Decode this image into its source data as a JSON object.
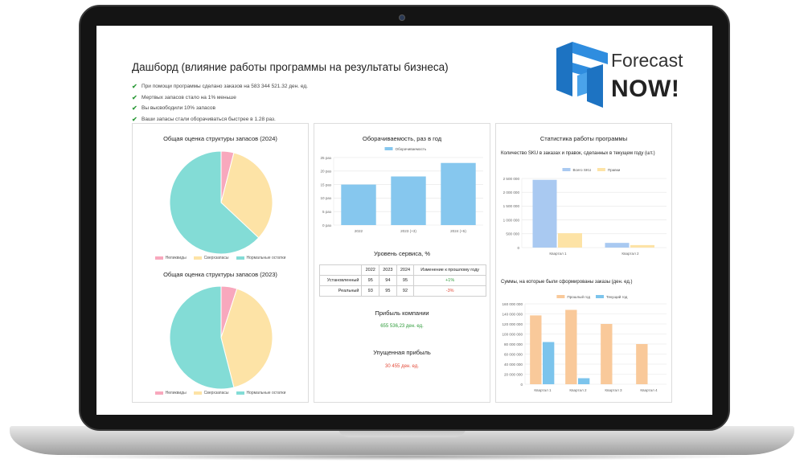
{
  "header": {
    "title": "Дашборд (влияние работы программы на результаты бизнеса)",
    "bullets": [
      "При помощи программы сделано заказов на 583 344 521.32 ден. ед.",
      "Мертвых запасов стало на 1% меньше",
      "Вы высвободили 10% запасов",
      "Ваши запасы стали оборачиваться быстрее в 1.28 раз."
    ]
  },
  "logo": {
    "line1": "Forecast",
    "line2": "NOW!"
  },
  "colors": {
    "pink": "#f8a8bd",
    "yellow": "#fde3a6",
    "teal": "#83dcd6",
    "blue": "#86c7ee",
    "sky": "#a9c9f1",
    "orange": "#f9c99a",
    "bluebar": "#7cc4ec"
  },
  "panel1": {
    "chart1_title": "Общая оценка структуры запасов (2024)",
    "chart2_title": "Общая оценка структуры запасов (2023)",
    "legend": [
      "Неликвиды",
      "Сверхзапасы",
      "Нормальные остатки"
    ]
  },
  "panel2": {
    "turnover_title": "Оборачиваемость, раз в год",
    "turnover_legend": "Оборачиваемость",
    "service_title": "Уровень сервиса, %",
    "service_table": {
      "headers": [
        "",
        "2022",
        "2023",
        "2024",
        "Изменение к прошлому году"
      ],
      "rows": [
        [
          "Установленный",
          "95",
          "94",
          "95",
          "+1%"
        ],
        [
          "Реальный",
          "93",
          "95",
          "92",
          "-3%"
        ]
      ]
    },
    "profit_title": "Прибыль компании",
    "profit_value": "655 536,23 ден. ед.",
    "lost_title": "Упущенная прибыль",
    "lost_value": "30 455 ден. ед."
  },
  "panel3": {
    "title": "Статистика работы программы",
    "sku_title": "Количество SKU в заказах и правок, сделанных в текущем году (шт.)",
    "sums_title": "Суммы, на которые были сформированы заказы (ден. ед.)"
  },
  "chart_data": [
    {
      "type": "pie",
      "title": "Общая оценка структуры запасов (2024)",
      "labels": [
        "Неликвиды",
        "Сверхзапасы",
        "Нормальные остатки"
      ],
      "values": [
        4,
        33,
        63
      ]
    },
    {
      "type": "pie",
      "title": "Общая оценка структуры запасов (2023)",
      "labels": [
        "Неликвиды",
        "Сверхзапасы",
        "Нормальные остатки"
      ],
      "values": [
        5,
        41,
        54
      ]
    },
    {
      "type": "bar",
      "title": "Оборачиваемость, раз в год",
      "categories": [
        "2022",
        "2023 (+3)",
        "2024 (+5)"
      ],
      "series": [
        {
          "name": "Оборачиваемость",
          "values": [
            15,
            18,
            23
          ]
        }
      ],
      "yticks": [
        "0 раз",
        "5 раз",
        "10 раз",
        "15 раз",
        "20 раз",
        "25 раз"
      ],
      "ylim": [
        0,
        25
      ]
    },
    {
      "type": "bar",
      "title": "Количество SKU в заказах и правок, сделанных в текущем году (шт.)",
      "categories": [
        "Квартал 1",
        "Квартал 2"
      ],
      "series": [
        {
          "name": "Всего SKU",
          "values": [
            2450000,
            170000
          ]
        },
        {
          "name": "Правки",
          "values": [
            520000,
            90000
          ]
        }
      ],
      "yticks": [
        "0",
        "500 000",
        "1 000 000",
        "1 500 000",
        "2 000 000",
        "2 500 000"
      ],
      "ylim": [
        0,
        2500000
      ]
    },
    {
      "type": "bar",
      "title": "Суммы, на которые были сформированы заказы (ден. ед.)",
      "categories": [
        "Квартал 1",
        "Квартал 2",
        "Квартал 3",
        "Квартал 4"
      ],
      "series": [
        {
          "name": "Прошлый год",
          "values": [
            137000000,
            148000000,
            120000000,
            80000000
          ]
        },
        {
          "name": "Текущий год",
          "values": [
            84000000,
            12000000,
            0,
            0
          ]
        }
      ],
      "yticks": [
        "0",
        "20 000 000",
        "40 000 000",
        "60 000 000",
        "80 000 000",
        "100 000 000",
        "120 000 000",
        "140 000 000",
        "160 000 000"
      ],
      "ylim": [
        0,
        160000000
      ]
    }
  ]
}
